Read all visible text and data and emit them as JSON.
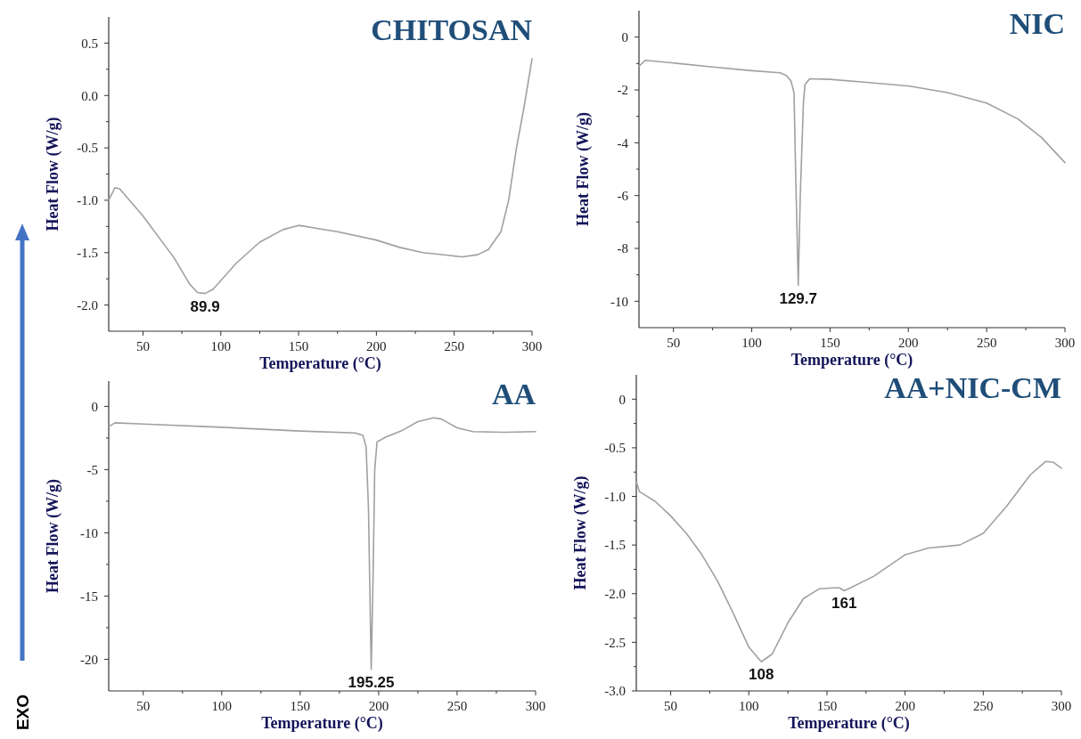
{
  "chart_data": [
    {
      "type": "line",
      "title": "CHITOSAN",
      "xlabel": "Temperature (°C)",
      "ylabel": "Heat Flow (W/g)",
      "color": "#a0a0a0",
      "xlim": [
        28,
        300
      ],
      "ylim": [
        -2.25,
        0.75
      ],
      "xticks": [
        50,
        {
          "value": 75,
          "label": null
        },
        100,
        {
          "value": 125,
          "label": null
        },
        150,
        {
          "value": 175,
          "label": null
        },
        200,
        {
          "value": 225,
          "label": null
        },
        250,
        {
          "value": 275,
          "label": null
        },
        300
      ],
      "yticks": [
        {
          "value": -2.0,
          "label": "-2.0"
        },
        {
          "value": -1.75,
          "label": null
        },
        {
          "value": -1.5,
          "label": "-1.5"
        },
        {
          "value": -1.25,
          "label": null
        },
        {
          "value": -1.0,
          "label": "-1.0"
        },
        {
          "value": -0.75,
          "label": null
        },
        {
          "value": -0.5,
          "label": "-0.5"
        },
        {
          "value": -0.25,
          "label": null
        },
        {
          "value": 0,
          "label": "0.0"
        },
        {
          "value": 0.25,
          "label": null
        },
        {
          "value": 0.5,
          "label": "0.5"
        }
      ],
      "x": [
        28,
        32,
        35,
        50,
        70,
        80,
        85,
        89.9,
        95,
        110,
        125,
        140,
        150,
        175,
        200,
        215,
        230,
        255,
        265,
        272,
        280,
        285,
        290,
        295,
        300
      ],
      "values": [
        -1.0,
        -0.88,
        -0.89,
        -1.15,
        -1.55,
        -1.8,
        -1.88,
        -1.89,
        -1.85,
        -1.6,
        -1.4,
        -1.28,
        -1.24,
        -1.3,
        -1.38,
        -1.45,
        -1.5,
        -1.54,
        -1.52,
        -1.47,
        -1.3,
        -1.0,
        -0.5,
        -0.1,
        0.35
      ],
      "annotations": [
        {
          "text": "89.9",
          "x": 89.9,
          "y": -1.89
        }
      ]
    },
    {
      "type": "line",
      "title": "NIC",
      "xlabel": "Temperature (°C)",
      "ylabel": "Heat Flow (W/g)",
      "color": "#a0a0a0",
      "xlim": [
        28,
        300
      ],
      "ylim": [
        -11,
        1
      ],
      "xticks": [
        50,
        {
          "value": 75,
          "label": null
        },
        100,
        {
          "value": 125,
          "label": null
        },
        150,
        {
          "value": 175,
          "label": null
        },
        200,
        {
          "value": 225,
          "label": null
        },
        250,
        {
          "value": 275,
          "label": null
        },
        300
      ],
      "yticks": [
        -10,
        {
          "value": -9,
          "label": null
        },
        -8,
        {
          "value": -7,
          "label": null
        },
        -6,
        {
          "value": -5,
          "label": null
        },
        -4,
        {
          "value": -3,
          "label": null
        },
        -2,
        {
          "value": -1,
          "label": null
        },
        0
      ],
      "x": [
        28,
        32,
        50,
        75,
        100,
        118,
        122,
        125,
        127,
        128,
        129.7,
        131,
        133,
        134,
        137,
        150,
        175,
        200,
        225,
        250,
        270,
        285,
        300
      ],
      "values": [
        -1.1,
        -0.88,
        -0.98,
        -1.13,
        -1.27,
        -1.35,
        -1.45,
        -1.65,
        -2.1,
        -5,
        -9.4,
        -6,
        -2.5,
        -1.8,
        -1.58,
        -1.6,
        -1.72,
        -1.85,
        -2.1,
        -2.5,
        -3.1,
        -3.8,
        -4.75
      ],
      "annotations": [
        {
          "text": "129.7",
          "x": 129.7,
          "y": -9.4
        }
      ]
    },
    {
      "type": "line",
      "title": "AA",
      "xlabel": "Temperature (°C)",
      "ylabel": "Heat Flow (W/g)",
      "color": "#a0a0a0",
      "xlim": [
        28,
        300
      ],
      "ylim": [
        -22.5,
        2
      ],
      "xticks": [
        50,
        {
          "value": 75,
          "label": null
        },
        100,
        {
          "value": 125,
          "label": null
        },
        150,
        {
          "value": 175,
          "label": null
        },
        200,
        {
          "value": 225,
          "label": null
        },
        250,
        {
          "value": 275,
          "label": null
        },
        300
      ],
      "yticks": [
        -20,
        {
          "value": -17.5,
          "label": null
        },
        -15,
        {
          "value": -12.5,
          "label": null
        },
        -10,
        {
          "value": -7.5,
          "label": null
        },
        -5,
        {
          "value": -2.5,
          "label": null
        },
        0
      ],
      "x": [
        28,
        32,
        50,
        100,
        150,
        185,
        190,
        192,
        193.5,
        195.25,
        196.5,
        197.5,
        199,
        205,
        215,
        225,
        235,
        240,
        250,
        260,
        280,
        300
      ],
      "values": [
        -1.6,
        -1.3,
        -1.4,
        -1.65,
        -1.95,
        -2.1,
        -2.3,
        -3.2,
        -8,
        -20.8,
        -13,
        -5,
        -2.8,
        -2.4,
        -1.9,
        -1.2,
        -0.9,
        -1.0,
        -1.7,
        -2.0,
        -2.05,
        -2.0
      ],
      "annotations": [
        {
          "text": "195.25",
          "x": 195.25,
          "y": -20.8
        },
        "EXO"
      ]
    },
    {
      "type": "line",
      "title": "AA+NIC-CM",
      "xlabel": "Temperature (°C)",
      "ylabel": "Heat Flow (W/g)",
      "color": "#a0a0a0",
      "xlim": [
        28,
        300
      ],
      "ylim": [
        -3.0,
        0.25
      ],
      "xticks": [
        50,
        {
          "value": 75,
          "label": null
        },
        100,
        {
          "value": 125,
          "label": null
        },
        150,
        {
          "value": 175,
          "label": null
        },
        200,
        {
          "value": 225,
          "label": null
        },
        250,
        {
          "value": 275,
          "label": null
        },
        300
      ],
      "yticks": [
        {
          "value": -3.0,
          "label": "-3.0"
        },
        {
          "value": -2.75,
          "label": null
        },
        {
          "value": -2.5,
          "label": "-2.5"
        },
        {
          "value": -2.25,
          "label": null
        },
        {
          "value": -2.0,
          "label": "-2.0"
        },
        {
          "value": -1.75,
          "label": null
        },
        {
          "value": -1.5,
          "label": "-1.5"
        },
        {
          "value": -1.25,
          "label": null
        },
        {
          "value": -1.0,
          "label": "-1.0"
        },
        {
          "value": -0.75,
          "label": null
        },
        {
          "value": -0.5,
          "label": "-0.5"
        },
        {
          "value": -0.25,
          "label": null
        },
        0
      ],
      "x": [
        28,
        30,
        40,
        50,
        60,
        70,
        80,
        90,
        100,
        108,
        115,
        125,
        135,
        145,
        155,
        158,
        161,
        165,
        180,
        200,
        215,
        235,
        250,
        265,
        280,
        290,
        295,
        300
      ],
      "values": [
        -0.85,
        -0.95,
        -1.05,
        -1.2,
        -1.38,
        -1.6,
        -1.87,
        -2.2,
        -2.55,
        -2.7,
        -2.62,
        -2.3,
        -2.05,
        -1.95,
        -1.94,
        -1.94,
        -1.97,
        -1.94,
        -1.82,
        -1.6,
        -1.53,
        -1.5,
        -1.38,
        -1.1,
        -0.78,
        -0.64,
        -0.65,
        -0.71
      ],
      "annotations": [
        {
          "text": "108",
          "x": 108,
          "y": -2.7
        },
        {
          "text": "161",
          "x": 161,
          "y": -1.97
        }
      ]
    }
  ]
}
